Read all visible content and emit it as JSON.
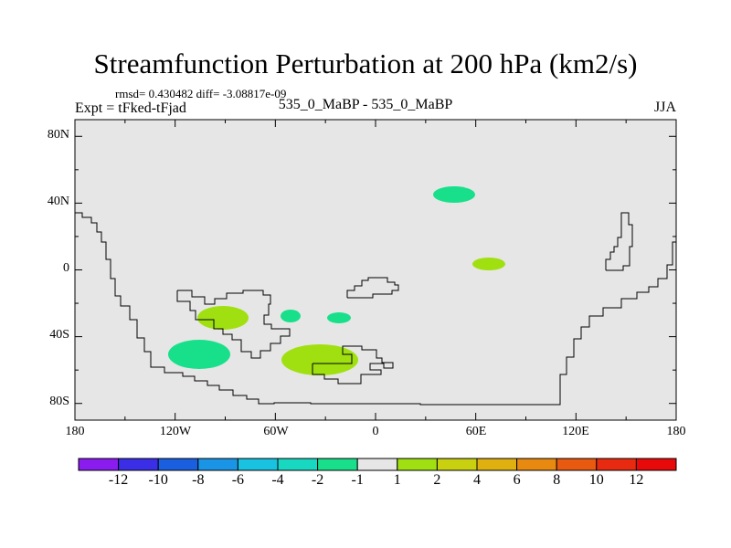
{
  "title": "Streamfunction Perturbation at 200 hPa (km2/s)",
  "stats": "rmsd= 0.430482  diff= -3.08817e-09",
  "left_label": "Expt = tFked-tFjad",
  "center_label": "535_0_MaBP - 535_0_MaBP",
  "right_label": "JJA",
  "y_ticks": [
    "80N",
    "40N",
    "0",
    "40S",
    "80S"
  ],
  "x_ticks": [
    "180",
    "120W",
    "60W",
    "0",
    "60E",
    "120E",
    "180"
  ],
  "colorbar": {
    "labels": [
      "-12",
      "-10",
      "-8",
      "-6",
      "-4",
      "-2",
      "-1",
      "1",
      "2",
      "4",
      "6",
      "8",
      "10",
      "12"
    ],
    "colors": [
      "#8a1cf0",
      "#3a2ee6",
      "#1a5fe0",
      "#1a95e6",
      "#18c2e0",
      "#18d8c2",
      "#18e08a",
      "#e6e6e6",
      "#a0e010",
      "#c8d010",
      "#e0b010",
      "#e88a10",
      "#e85a10",
      "#e82a10",
      "#e80a0a"
    ]
  },
  "map": {
    "lon_range": [
      -180,
      180
    ],
    "lat_range": [
      -90,
      90
    ],
    "background_color": "#e6e6e6",
    "features": [
      {
        "name": "negative-anomaly-north-pacific-east",
        "lon": 48,
        "lat": 45,
        "color": "#18e08a"
      },
      {
        "name": "positive-anomaly-east-of-africa",
        "lon": 68,
        "lat": 3,
        "color": "#a0e010"
      },
      {
        "name": "positive-anomaly-south-pacific",
        "lon": -93,
        "lat": -29,
        "color": "#a0e010"
      },
      {
        "name": "negative-anomaly-mid-pacific",
        "lon": -51,
        "lat": -28,
        "color": "#18e08a"
      },
      {
        "name": "negative-anomaly-south-atlantic",
        "lon": -23,
        "lat": -29,
        "color": "#18e08a"
      },
      {
        "name": "negative-anomaly-southern-ocean",
        "lon": -106,
        "lat": -52,
        "color": "#18e08a"
      },
      {
        "name": "positive-anomaly-southern-ocean",
        "lon": -33,
        "lat": -55,
        "color": "#a0e010"
      }
    ]
  }
}
